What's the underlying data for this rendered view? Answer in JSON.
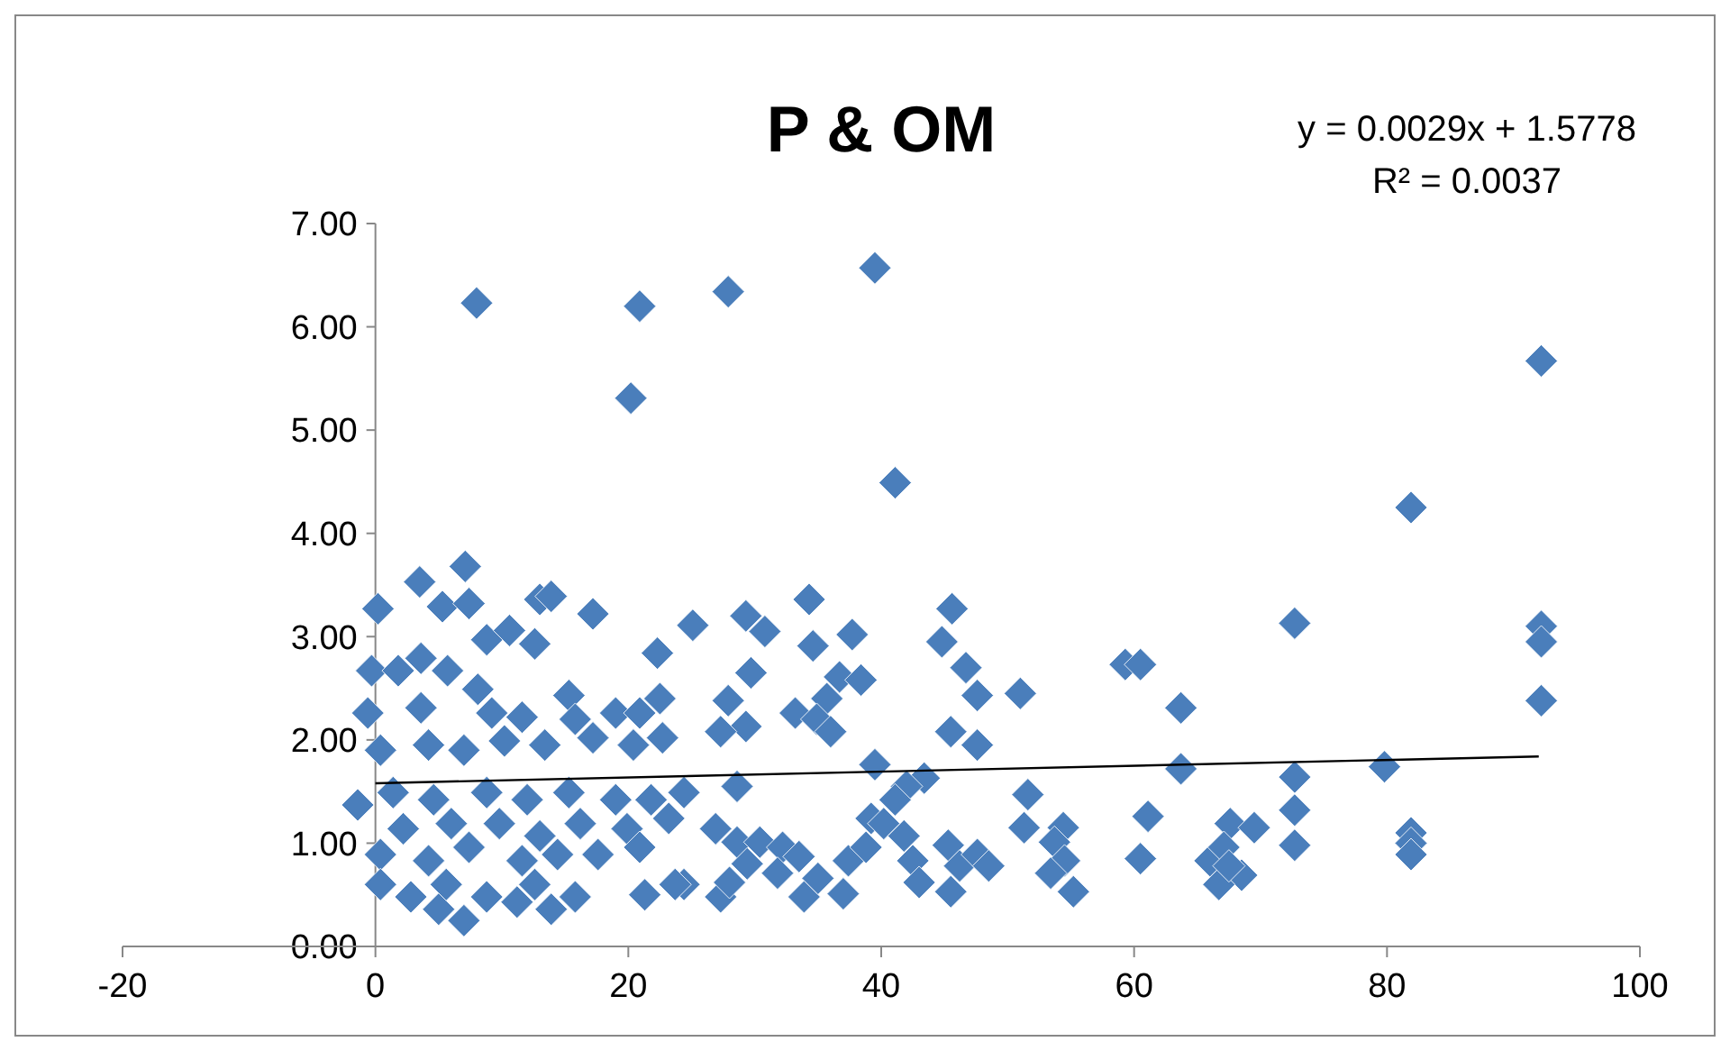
{
  "chart_data": {
    "type": "scatter",
    "title": "P & OM",
    "xlim": [
      -20,
      100
    ],
    "xticks": [
      -20,
      0,
      20,
      40,
      60,
      80,
      100
    ],
    "ylim": [
      0,
      7
    ],
    "yticks": [
      {
        "value": 0,
        "label": "0.00"
      },
      {
        "value": 1,
        "label": "1.00"
      },
      {
        "value": 2,
        "label": "2.00"
      },
      {
        "value": 3,
        "label": "3.00"
      },
      {
        "value": 4,
        "label": "4.00"
      },
      {
        "value": 5,
        "label": "5.00"
      },
      {
        "value": 6,
        "label": "6.00"
      },
      {
        "value": 7,
        "label": "7.00"
      }
    ],
    "annotations": [
      "y = 0.0029x + 1.5778",
      "R² = 0.0037"
    ],
    "series": [
      {
        "color": "#4a7ebb",
        "marker": "diamond",
        "x": [
          8,
          20.9,
          27.9,
          39.5,
          20.2,
          41.1,
          92.2,
          81.9,
          72.7,
          92.2,
          92.2,
          92.2,
          59.3,
          60.5,
          51,
          63.7,
          63.7,
          79.8,
          72.7,
          72.7,
          72.7,
          81.9,
          81.9,
          81.9,
          61.1,
          60.5,
          51.6,
          51.3,
          54.4,
          53.7,
          54.5,
          53.4,
          55.2,
          67.6,
          69.5,
          66,
          67.1,
          68.5,
          66.7,
          67.5,
          25.1,
          29.3,
          30.8,
          34.3,
          45.6,
          37.7,
          34.6,
          29.7,
          44.8,
          46.7,
          47.6,
          36.7,
          38.4,
          35.7,
          27.9,
          33.2,
          34.9,
          29.3,
          27.3,
          36,
          45.5,
          47.6,
          39.5,
          28.6,
          24.4,
          43.4,
          42,
          41.1,
          39.2,
          40.2,
          26.9,
          28.6,
          30.4,
          32.2,
          33.5,
          29.4,
          24.4,
          27.3,
          28,
          31.8,
          33.9,
          35,
          37,
          37.4,
          38.8,
          41.8,
          42.5,
          43,
          45.3,
          46.2,
          47.6,
          45.5,
          48.5,
          7.1,
          3.5,
          0.2,
          5.3,
          7.4,
          13,
          13.9,
          17.2,
          22.3,
          -0.3,
          8.8,
          10.6,
          12.6,
          3.6,
          1.8,
          5.7,
          8.1,
          15.3,
          19,
          20.9,
          22.5,
          -0.6,
          3.6,
          9.2,
          11.6,
          15.8,
          0.4,
          4.2,
          7,
          10.2,
          13.4,
          17.2,
          20.4,
          22.7,
          -1.4,
          1.4,
          4.6,
          8.8,
          12,
          15.3,
          19,
          21.8,
          2.2,
          6,
          9.8,
          13,
          16.2,
          19.9,
          23.2,
          0.4,
          4.2,
          7.4,
          11.6,
          14.4,
          17.6,
          20.9,
          0.4,
          2.8,
          5,
          7,
          8.8,
          11.2,
          13.9,
          15.8,
          5.6,
          12.6,
          21.3,
          23.7
        ],
        "values": [
          6.23,
          6.2,
          6.34,
          6.57,
          5.31,
          4.49,
          5.67,
          4.25,
          3.13,
          3.1,
          2.95,
          2.38,
          2.73,
          2.73,
          2.45,
          2.31,
          1.72,
          1.74,
          1.64,
          1.32,
          0.98,
          1.1,
          1,
          0.89,
          1.26,
          0.85,
          1.47,
          1.15,
          1.15,
          1.01,
          0.83,
          0.71,
          0.53,
          1.19,
          1.15,
          0.83,
          0.96,
          0.69,
          0.6,
          0.78,
          3.11,
          3.2,
          3.05,
          3.36,
          3.27,
          3.02,
          2.91,
          2.65,
          2.95,
          2.7,
          2.43,
          2.61,
          2.58,
          2.4,
          2.38,
          2.26,
          2.2,
          2.13,
          2.08,
          2.08,
          2.08,
          1.95,
          1.76,
          1.55,
          1.49,
          1.63,
          1.55,
          1.42,
          1.24,
          1.19,
          1.14,
          1.01,
          1.01,
          0.96,
          0.87,
          0.8,
          0.6,
          0.48,
          0.62,
          0.71,
          0.48,
          0.66,
          0.51,
          0.83,
          0.96,
          1.07,
          0.83,
          0.62,
          0.98,
          0.78,
          0.89,
          0.53,
          0.78,
          3.68,
          3.53,
          3.27,
          3.29,
          3.32,
          3.36,
          3.39,
          3.22,
          2.84,
          2.67,
          2.97,
          3.06,
          2.93,
          2.79,
          2.67,
          2.67,
          2.49,
          2.43,
          2.26,
          2.26,
          2.4,
          2.26,
          2.31,
          2.26,
          2.22,
          2.2,
          1.9,
          1.95,
          1.9,
          1.99,
          1.95,
          2.02,
          1.95,
          2.02,
          1.37,
          1.49,
          1.42,
          1.49,
          1.42,
          1.49,
          1.42,
          1.42,
          1.14,
          1.19,
          1.19,
          1.07,
          1.19,
          1.14,
          1.24,
          0.89,
          0.83,
          0.96,
          0.83,
          0.89,
          0.89,
          0.96,
          0.6,
          0.48,
          0.36,
          0.25,
          0.48,
          0.43,
          0.36,
          0.48,
          0.6,
          0.6,
          0.5,
          0.6
        ]
      },
      {
        "type": "line",
        "color": "#000000",
        "marker": "none",
        "x": [
          0,
          92
        ],
        "values": [
          1.58,
          1.84
        ]
      }
    ]
  }
}
